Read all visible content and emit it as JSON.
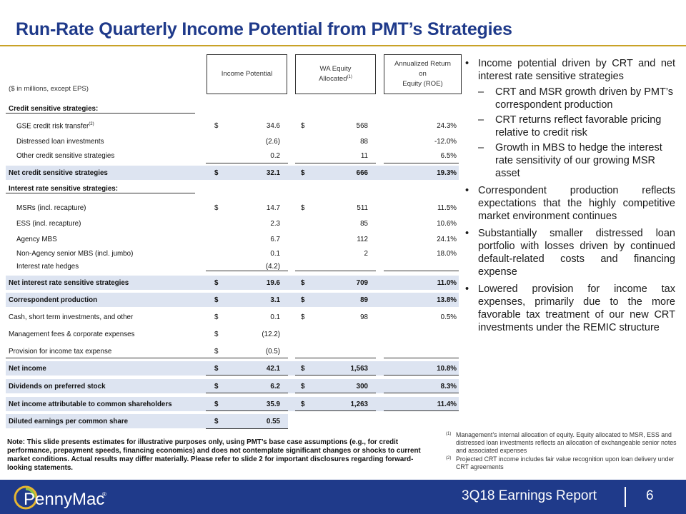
{
  "title": "Run-Rate Quarterly Income Potential from PMT’s Strategies",
  "table": {
    "units_label": "($ in millions, except EPS)",
    "col_income": "Income Potential",
    "col_wa_line1": "WA Equity",
    "col_wa_line2": "Allocated",
    "col_wa_sup": "(1)",
    "col_roe_line1": "Annualized Return",
    "col_roe_line2": "on",
    "col_roe_line3": "Equity (ROE)",
    "credit_header": "Credit sensitive strategies:",
    "rate_header": "Interest rate sensitive strategies:",
    "rows": {
      "gse": {
        "label": "GSE credit risk transfer",
        "sup": "(2)",
        "d1": "$",
        "income": "34.6",
        "d2": "$",
        "equity": "568",
        "roe": "24.3%"
      },
      "distressed": {
        "label": "Distressed loan investments",
        "income": "(2.6)",
        "equity": "88",
        "roe": "-12.0%"
      },
      "other_credit": {
        "label": "Other credit sensitive strategies",
        "income": "0.2",
        "equity": "11",
        "roe": "6.5%"
      },
      "net_credit": {
        "label": "Net credit sensitive strategies",
        "d1": "$",
        "income": "32.1",
        "d2": "$",
        "equity": "666",
        "roe": "19.3%"
      },
      "msrs": {
        "label": "MSRs (incl. recapture)",
        "d1": "$",
        "income": "14.7",
        "d2": "$",
        "equity": "511",
        "roe": "11.5%"
      },
      "ess": {
        "label": "ESS (incl. recapture)",
        "income": "2.3",
        "equity": "85",
        "roe": "10.6%"
      },
      "agency": {
        "label": "Agency MBS",
        "income": "6.7",
        "equity": "112",
        "roe": "24.1%"
      },
      "non_agency": {
        "label": "Non-Agency senior MBS (incl. jumbo)",
        "income": "0.1",
        "equity": "2",
        "roe": "18.0%"
      },
      "hedges": {
        "label": "Interest rate hedges",
        "income": "(4.2)"
      },
      "net_rate": {
        "label": "Net interest rate sensitive strategies",
        "d1": "$",
        "income": "19.6",
        "d2": "$",
        "equity": "709",
        "roe": "11.0%"
      },
      "corr": {
        "label": "Correspondent production",
        "d1": "$",
        "income": "3.1",
        "d2": "$",
        "equity": "89",
        "roe": "13.8%"
      },
      "cash": {
        "label": "Cash, short term investments, and other",
        "d1": "$",
        "income": "0.1",
        "d2": "$",
        "equity": "98",
        "roe": "0.5%"
      },
      "mgmt": {
        "label": "Management fees & corporate expenses",
        "d1": "$",
        "income": "(12.2)"
      },
      "tax": {
        "label": "Provision for income tax expense",
        "d1": "$",
        "income": "(0.5)"
      },
      "net_income": {
        "label": "Net income",
        "d1": "$",
        "income": "42.1",
        "d2": "$",
        "equity": "1,563",
        "roe": "10.8%"
      },
      "dividends": {
        "label": "Dividends on preferred stock",
        "d1": "$",
        "income": "6.2",
        "d2": "$",
        "equity": "300",
        "roe": "8.3%"
      },
      "common": {
        "label": "Net income attributable to common shareholders",
        "d1": "$",
        "income": "35.9",
        "d2": "$",
        "equity": "1,263",
        "roe": "11.4%"
      },
      "eps": {
        "label": "Diluted earnings per common share",
        "d1": "$",
        "income": "0.55"
      }
    }
  },
  "bullets": {
    "b1": "Income potential driven by CRT and net interest rate sensitive strategies",
    "s1": "CRT and MSR growth driven by PMT’s correspondent production",
    "s2": "CRT returns reflect favorable pricing relative to credit risk",
    "s3": "Growth in MBS to hedge the interest rate sensitivity of our growing MSR asset",
    "b2": "Correspondent production reflects expectations that the highly competitive market environment continues",
    "b3": "Substantially smaller distressed loan portfolio with losses driven by continued default-related costs and financing expense",
    "b4": "Lowered provision for income tax expenses, primarily due to the more favorable tax treatment of our new CRT investments under the REMIC structure"
  },
  "note": "Note: This slide presents estimates for illustrative purposes only, using PMT’s base case assumptions (e.g., for credit performance, prepayment speeds, financing economics) and does not contemplate significant changes or shocks to current market conditions.  Actual results may differ materially.  Please refer to slide 2 for important disclosures regarding forward-looking statements.",
  "footnotes": {
    "f1_mark": "(1)",
    "f1": "Management’s internal allocation of equity. Equity allocated to MSR, ESS and distressed loan investments reflects an allocation of exchangeable senior notes and associated expenses",
    "f2_mark": "(2)",
    "f2": "Projected CRT income includes fair value recognition upon loan delivery under CRT agreements"
  },
  "footer": {
    "logo_text": "PennyMac",
    "logo_reg": "®",
    "report": "3Q18 Earnings Report",
    "page": "6"
  },
  "colors": {
    "brand_blue": "#1f3a8a",
    "accent_gold": "#c9a227",
    "row_shade": "#dde4f1"
  }
}
